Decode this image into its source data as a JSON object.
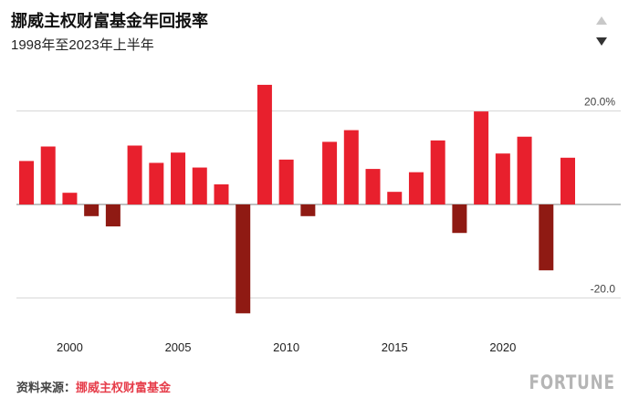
{
  "header": {
    "title": "挪威主权财富基金年回报率",
    "subtitle": "1998年至2023年上半年"
  },
  "footer": {
    "source_label": "资料来源：",
    "source_value": "挪威主权财富基金",
    "logo_text": "FORTUNE"
  },
  "controls": {
    "up_icon": "triangle-up-icon",
    "down_icon": "triangle-down-icon"
  },
  "chart_data": {
    "type": "bar",
    "title": "挪威主权财富基金年回报率",
    "subtitle": "1998年至2023年上半年",
    "x": [
      1998,
      1999,
      2000,
      2001,
      2002,
      2003,
      2004,
      2005,
      2006,
      2007,
      2008,
      2009,
      2010,
      2011,
      2012,
      2013,
      2014,
      2015,
      2016,
      2017,
      2018,
      2019,
      2020,
      2021,
      2022,
      2023
    ],
    "values": [
      9.3,
      12.4,
      2.5,
      -2.5,
      -4.7,
      12.6,
      8.9,
      11.1,
      7.9,
      4.3,
      -23.3,
      25.6,
      9.6,
      -2.5,
      13.4,
      15.9,
      7.6,
      2.7,
      6.9,
      13.7,
      -6.1,
      19.9,
      10.9,
      14.5,
      -14.1,
      10.0
    ]
  },
  "axis": {
    "ylim": [
      -23,
      26
    ],
    "ticks": [
      20,
      0,
      -20
    ],
    "y_tick_labels": [
      "20.0%",
      "",
      "-20.0"
    ],
    "x_tick_labels": [
      "2000",
      "2005",
      "2010",
      "2015",
      "2020"
    ],
    "x_tick_years": [
      2000,
      2005,
      2010,
      2015,
      2020
    ]
  },
  "colors": {
    "positive": "#e8202d",
    "negative": "#8f1a13",
    "grid": "#d6d6d6",
    "zero_line": "#9a9a9a",
    "axis_text": "#444444"
  }
}
